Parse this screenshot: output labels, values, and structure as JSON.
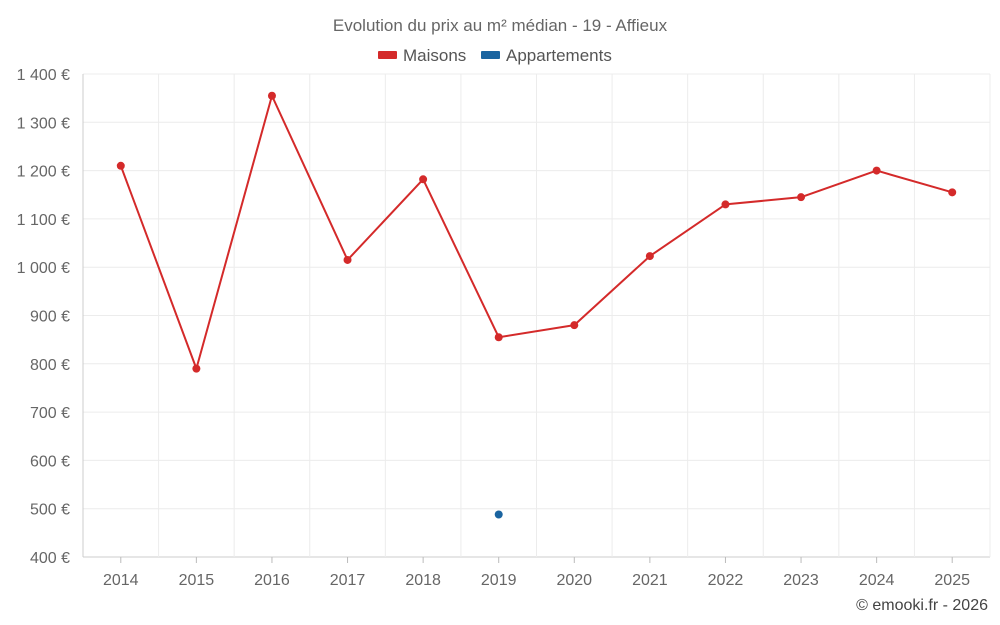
{
  "chart_data": {
    "type": "line",
    "title": "Evolution du prix au m² médian - 19 - Affieux",
    "categories": [
      "2014",
      "2015",
      "2016",
      "2017",
      "2018",
      "2019",
      "2020",
      "2021",
      "2022",
      "2023",
      "2024",
      "2025"
    ],
    "series": [
      {
        "name": "Maisons",
        "color": "#d42a2a",
        "values": [
          1210,
          790,
          1355,
          1015,
          1182,
          855,
          880,
          1023,
          1130,
          1145,
          1200,
          1155
        ]
      },
      {
        "name": "Appartements",
        "color": "#1a64a0",
        "values": [
          null,
          null,
          null,
          null,
          null,
          488,
          null,
          null,
          null,
          null,
          null,
          null
        ]
      }
    ],
    "ylim": [
      400,
      1400
    ],
    "yticks": [
      {
        "value": 400,
        "label": "400 €"
      },
      {
        "value": 500,
        "label": "500 €"
      },
      {
        "value": 600,
        "label": "600 €"
      },
      {
        "value": 700,
        "label": "700 €"
      },
      {
        "value": 800,
        "label": "800 €"
      },
      {
        "value": 900,
        "label": "900 €"
      },
      {
        "value": 1000,
        "label": "1 000 €"
      },
      {
        "value": 1100,
        "label": "1 100 €"
      },
      {
        "value": 1200,
        "label": "1 200 €"
      },
      {
        "value": 1300,
        "label": "1 300 €"
      },
      {
        "value": 1400,
        "label": "1 400 €"
      }
    ],
    "xlabel": "",
    "ylabel": "",
    "legend_position": "top-center",
    "grid": true
  },
  "credit": "© emooki.fr - 2026"
}
